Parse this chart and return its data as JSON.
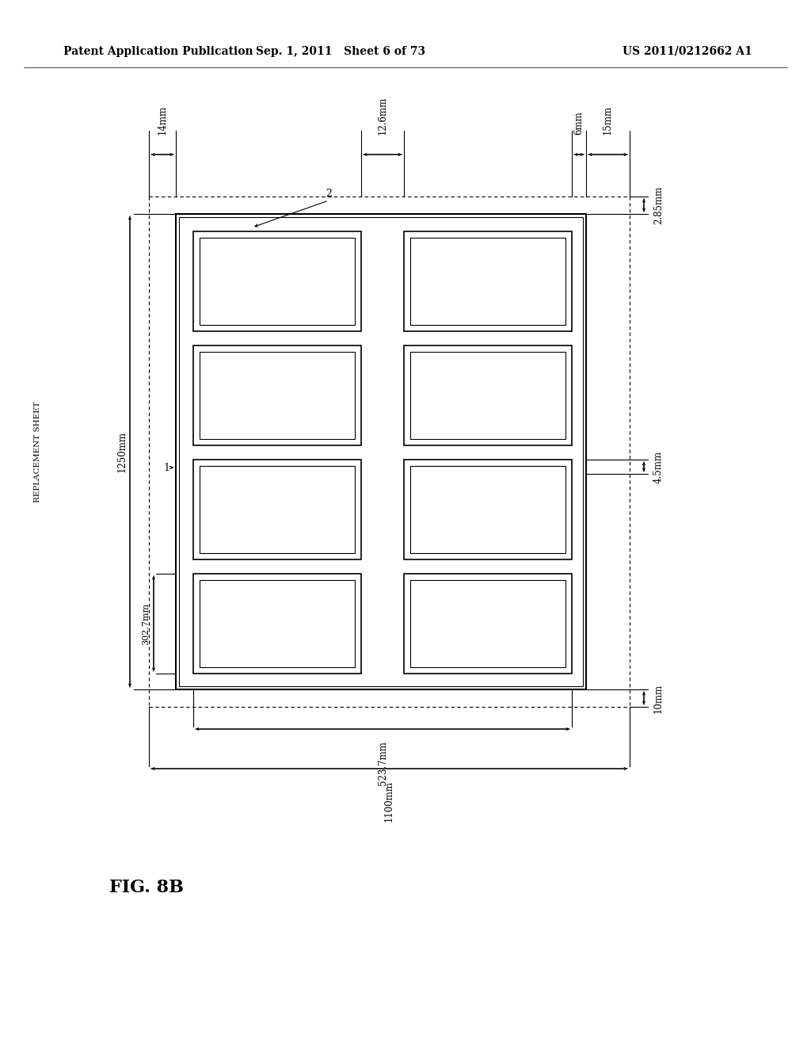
{
  "title_left": "Patent Application Publication",
  "title_center": "Sep. 1, 2011   Sheet 6 of 73",
  "title_right": "US 2011/0212662 A1",
  "fig_label": "FIG. 8B",
  "replacement_sheet_text": "REPLACEMENT SHEET",
  "background_color": "#ffffff",
  "text_color": "#000000",
  "line_color": "#000000",
  "dim_14mm": "14mm",
  "dim_126mm": "12.6mm",
  "dim_6mm": "6mm",
  "dim_15mm": "15mm",
  "dim_285mm": "2.85mm",
  "dim_45mm": "4.5mm",
  "dim_10mm": "10mm",
  "dim_1250mm": "1250mm",
  "dim_3027mm": "302.7mm",
  "dim_5237mm": "523.7mm",
  "dim_1100mm": "1100mm"
}
